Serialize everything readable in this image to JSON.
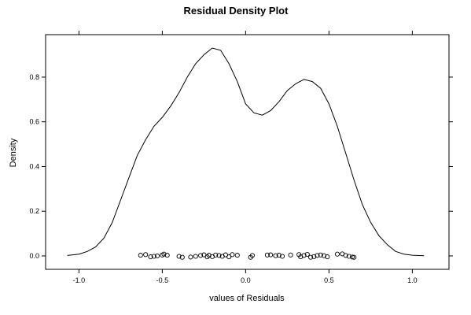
{
  "chart_data": {
    "type": "line",
    "title": "Residual Density Plot",
    "xlabel": "values of Residuals",
    "ylabel": "Density",
    "xlim": [
      -1.2,
      1.22
    ],
    "ylim": [
      -0.06,
      0.99
    ],
    "x_ticks": [
      -1.0,
      -0.5,
      0.0,
      0.5,
      1.0
    ],
    "x_tick_labels": [
      "-1.0",
      "-0.5",
      "0.0",
      "0.5",
      "1.0"
    ],
    "y_ticks": [
      0.0,
      0.2,
      0.4,
      0.6,
      0.8
    ],
    "y_tick_labels": [
      "0.0",
      "0.2",
      "0.4",
      "0.6",
      "0.8"
    ],
    "grid": false,
    "line_color": "#000000",
    "series": [
      {
        "style": "line",
        "x": [
          -1.07,
          -1.0,
          -0.95,
          -0.9,
          -0.85,
          -0.8,
          -0.75,
          -0.7,
          -0.65,
          -0.6,
          -0.55,
          -0.5,
          -0.45,
          -0.4,
          -0.35,
          -0.3,
          -0.25,
          -0.2,
          -0.15,
          -0.1,
          -0.05,
          0.0,
          0.05,
          0.1,
          0.15,
          0.2,
          0.25,
          0.3,
          0.35,
          0.4,
          0.45,
          0.5,
          0.55,
          0.6,
          0.65,
          0.7,
          0.75,
          0.8,
          0.85,
          0.9,
          0.95,
          1.0,
          1.07
        ],
        "y": [
          0.002,
          0.008,
          0.02,
          0.04,
          0.08,
          0.15,
          0.25,
          0.35,
          0.45,
          0.52,
          0.58,
          0.62,
          0.67,
          0.73,
          0.8,
          0.86,
          0.9,
          0.93,
          0.92,
          0.86,
          0.78,
          0.68,
          0.64,
          0.63,
          0.65,
          0.69,
          0.74,
          0.77,
          0.79,
          0.78,
          0.75,
          0.68,
          0.58,
          0.46,
          0.34,
          0.23,
          0.15,
          0.09,
          0.05,
          0.02,
          0.008,
          0.003,
          0.001
        ]
      },
      {
        "style": "points",
        "x": [
          -0.63,
          -0.6,
          -0.57,
          -0.55,
          -0.53,
          -0.5,
          -0.49,
          -0.47,
          -0.4,
          -0.38,
          -0.33,
          -0.3,
          -0.27,
          -0.25,
          -0.23,
          -0.22,
          -0.2,
          -0.18,
          -0.16,
          -0.14,
          -0.12,
          -0.1,
          -0.08,
          -0.05,
          0.03,
          0.04,
          0.13,
          0.15,
          0.18,
          0.2,
          0.22,
          0.27,
          0.32,
          0.33,
          0.35,
          0.37,
          0.39,
          0.41,
          0.43,
          0.45,
          0.47,
          0.49,
          0.55,
          0.58,
          0.6,
          0.62,
          0.64,
          0.65
        ],
        "y": [
          0.003,
          0.006,
          -0.004,
          -0.002,
          0.0,
          0.004,
          0.008,
          0.003,
          -0.002,
          -0.006,
          -0.005,
          -0.002,
          0.002,
          0.005,
          -0.004,
          0.003,
          -0.003,
          0.004,
          0.002,
          -0.002,
          0.005,
          -0.004,
          0.006,
          0.003,
          -0.006,
          0.002,
          0.004,
          0.005,
          0.001,
          0.003,
          -0.002,
          0.004,
          0.006,
          -0.004,
          0.002,
          0.007,
          -0.006,
          -0.003,
          0.002,
          0.004,
          0.001,
          -0.004,
          0.008,
          0.009,
          0.002,
          -0.002,
          -0.005,
          -0.006
        ]
      }
    ]
  }
}
